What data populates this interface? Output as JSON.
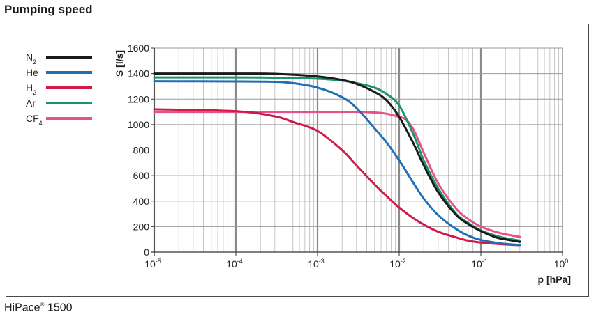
{
  "title": "Pumping speed",
  "footer": {
    "product": "HiPace",
    "mark": "®",
    "model": "1500"
  },
  "chart_data": {
    "type": "line",
    "xscale": "log",
    "xlim": [
      1e-05,
      1
    ],
    "ylim": [
      0,
      1600
    ],
    "xlabel": "p [hPa]",
    "ylabel": "S [l/s]",
    "grid": true,
    "legend_position": "top-left",
    "x_ticks": [
      {
        "value": 1e-05,
        "base": "10",
        "exp": "-5"
      },
      {
        "value": 0.0001,
        "base": "10",
        "exp": "-4"
      },
      {
        "value": 0.001,
        "base": "10",
        "exp": "-3"
      },
      {
        "value": 0.01,
        "base": "10",
        "exp": "-2"
      },
      {
        "value": 0.1,
        "base": "10",
        "exp": "-1"
      },
      {
        "value": 1,
        "base": "10",
        "exp": "0"
      }
    ],
    "y_ticks": [
      "0",
      "200",
      "400",
      "600",
      "800",
      "1000",
      "1200",
      "1400",
      "1600"
    ],
    "series": [
      {
        "name": "N",
        "sub": "2",
        "color": "#1a1a1a",
        "x": [
          1e-05,
          0.0001,
          0.0003,
          0.001,
          0.002,
          0.003,
          0.005,
          0.007,
          0.01,
          0.015,
          0.02,
          0.03,
          0.05,
          0.07,
          0.1,
          0.15,
          0.2,
          0.3
        ],
        "y": [
          1400,
          1400,
          1398,
          1378,
          1350,
          1320,
          1255,
          1190,
          1060,
          850,
          680,
          470,
          290,
          220,
          165,
          118,
          100,
          80
        ]
      },
      {
        "name": "He",
        "sub": "",
        "color": "#1f6fb5",
        "x": [
          1e-05,
          0.0001,
          0.0003,
          0.0005,
          0.001,
          0.002,
          0.003,
          0.005,
          0.007,
          0.01,
          0.015,
          0.02,
          0.03,
          0.05,
          0.07,
          0.1,
          0.15,
          0.2,
          0.3
        ],
        "y": [
          1340,
          1338,
          1335,
          1325,
          1290,
          1215,
          1130,
          970,
          860,
          720,
          540,
          420,
          290,
          180,
          130,
          95,
          75,
          65,
          55
        ]
      },
      {
        "name": "H",
        "sub": "2",
        "color": "#d1194a",
        "x": [
          1e-05,
          0.0001,
          0.0003,
          0.0005,
          0.001,
          0.002,
          0.003,
          0.005,
          0.007,
          0.01,
          0.015,
          0.02,
          0.03,
          0.05,
          0.07,
          0.1,
          0.2,
          0.3
        ],
        "y": [
          1120,
          1105,
          1065,
          1020,
          950,
          800,
          680,
          530,
          440,
          350,
          265,
          215,
          160,
          115,
          90,
          75,
          60,
          55
        ]
      },
      {
        "name": "Ar",
        "sub": "",
        "color": "#1a9468",
        "x": [
          1e-05,
          0.0001,
          0.0003,
          0.001,
          0.002,
          0.003,
          0.005,
          0.007,
          0.01,
          0.015,
          0.02,
          0.03,
          0.05,
          0.07,
          0.1,
          0.15,
          0.2,
          0.3
        ],
        "y": [
          1370,
          1370,
          1368,
          1360,
          1345,
          1325,
          1290,
          1240,
          1150,
          920,
          720,
          500,
          300,
          230,
          170,
          130,
          110,
          90
        ]
      },
      {
        "name": "CF",
        "sub": "4",
        "color": "#e8508a",
        "x": [
          1e-05,
          0.0001,
          0.0003,
          0.001,
          0.002,
          0.003,
          0.005,
          0.007,
          0.01,
          0.012,
          0.015,
          0.02,
          0.03,
          0.05,
          0.07,
          0.1,
          0.15,
          0.2,
          0.3
        ],
        "y": [
          1100,
          1100,
          1100,
          1100,
          1100,
          1100,
          1095,
          1085,
          1060,
          1040,
          960,
          780,
          540,
          340,
          260,
          200,
          160,
          140,
          120
        ]
      }
    ]
  }
}
